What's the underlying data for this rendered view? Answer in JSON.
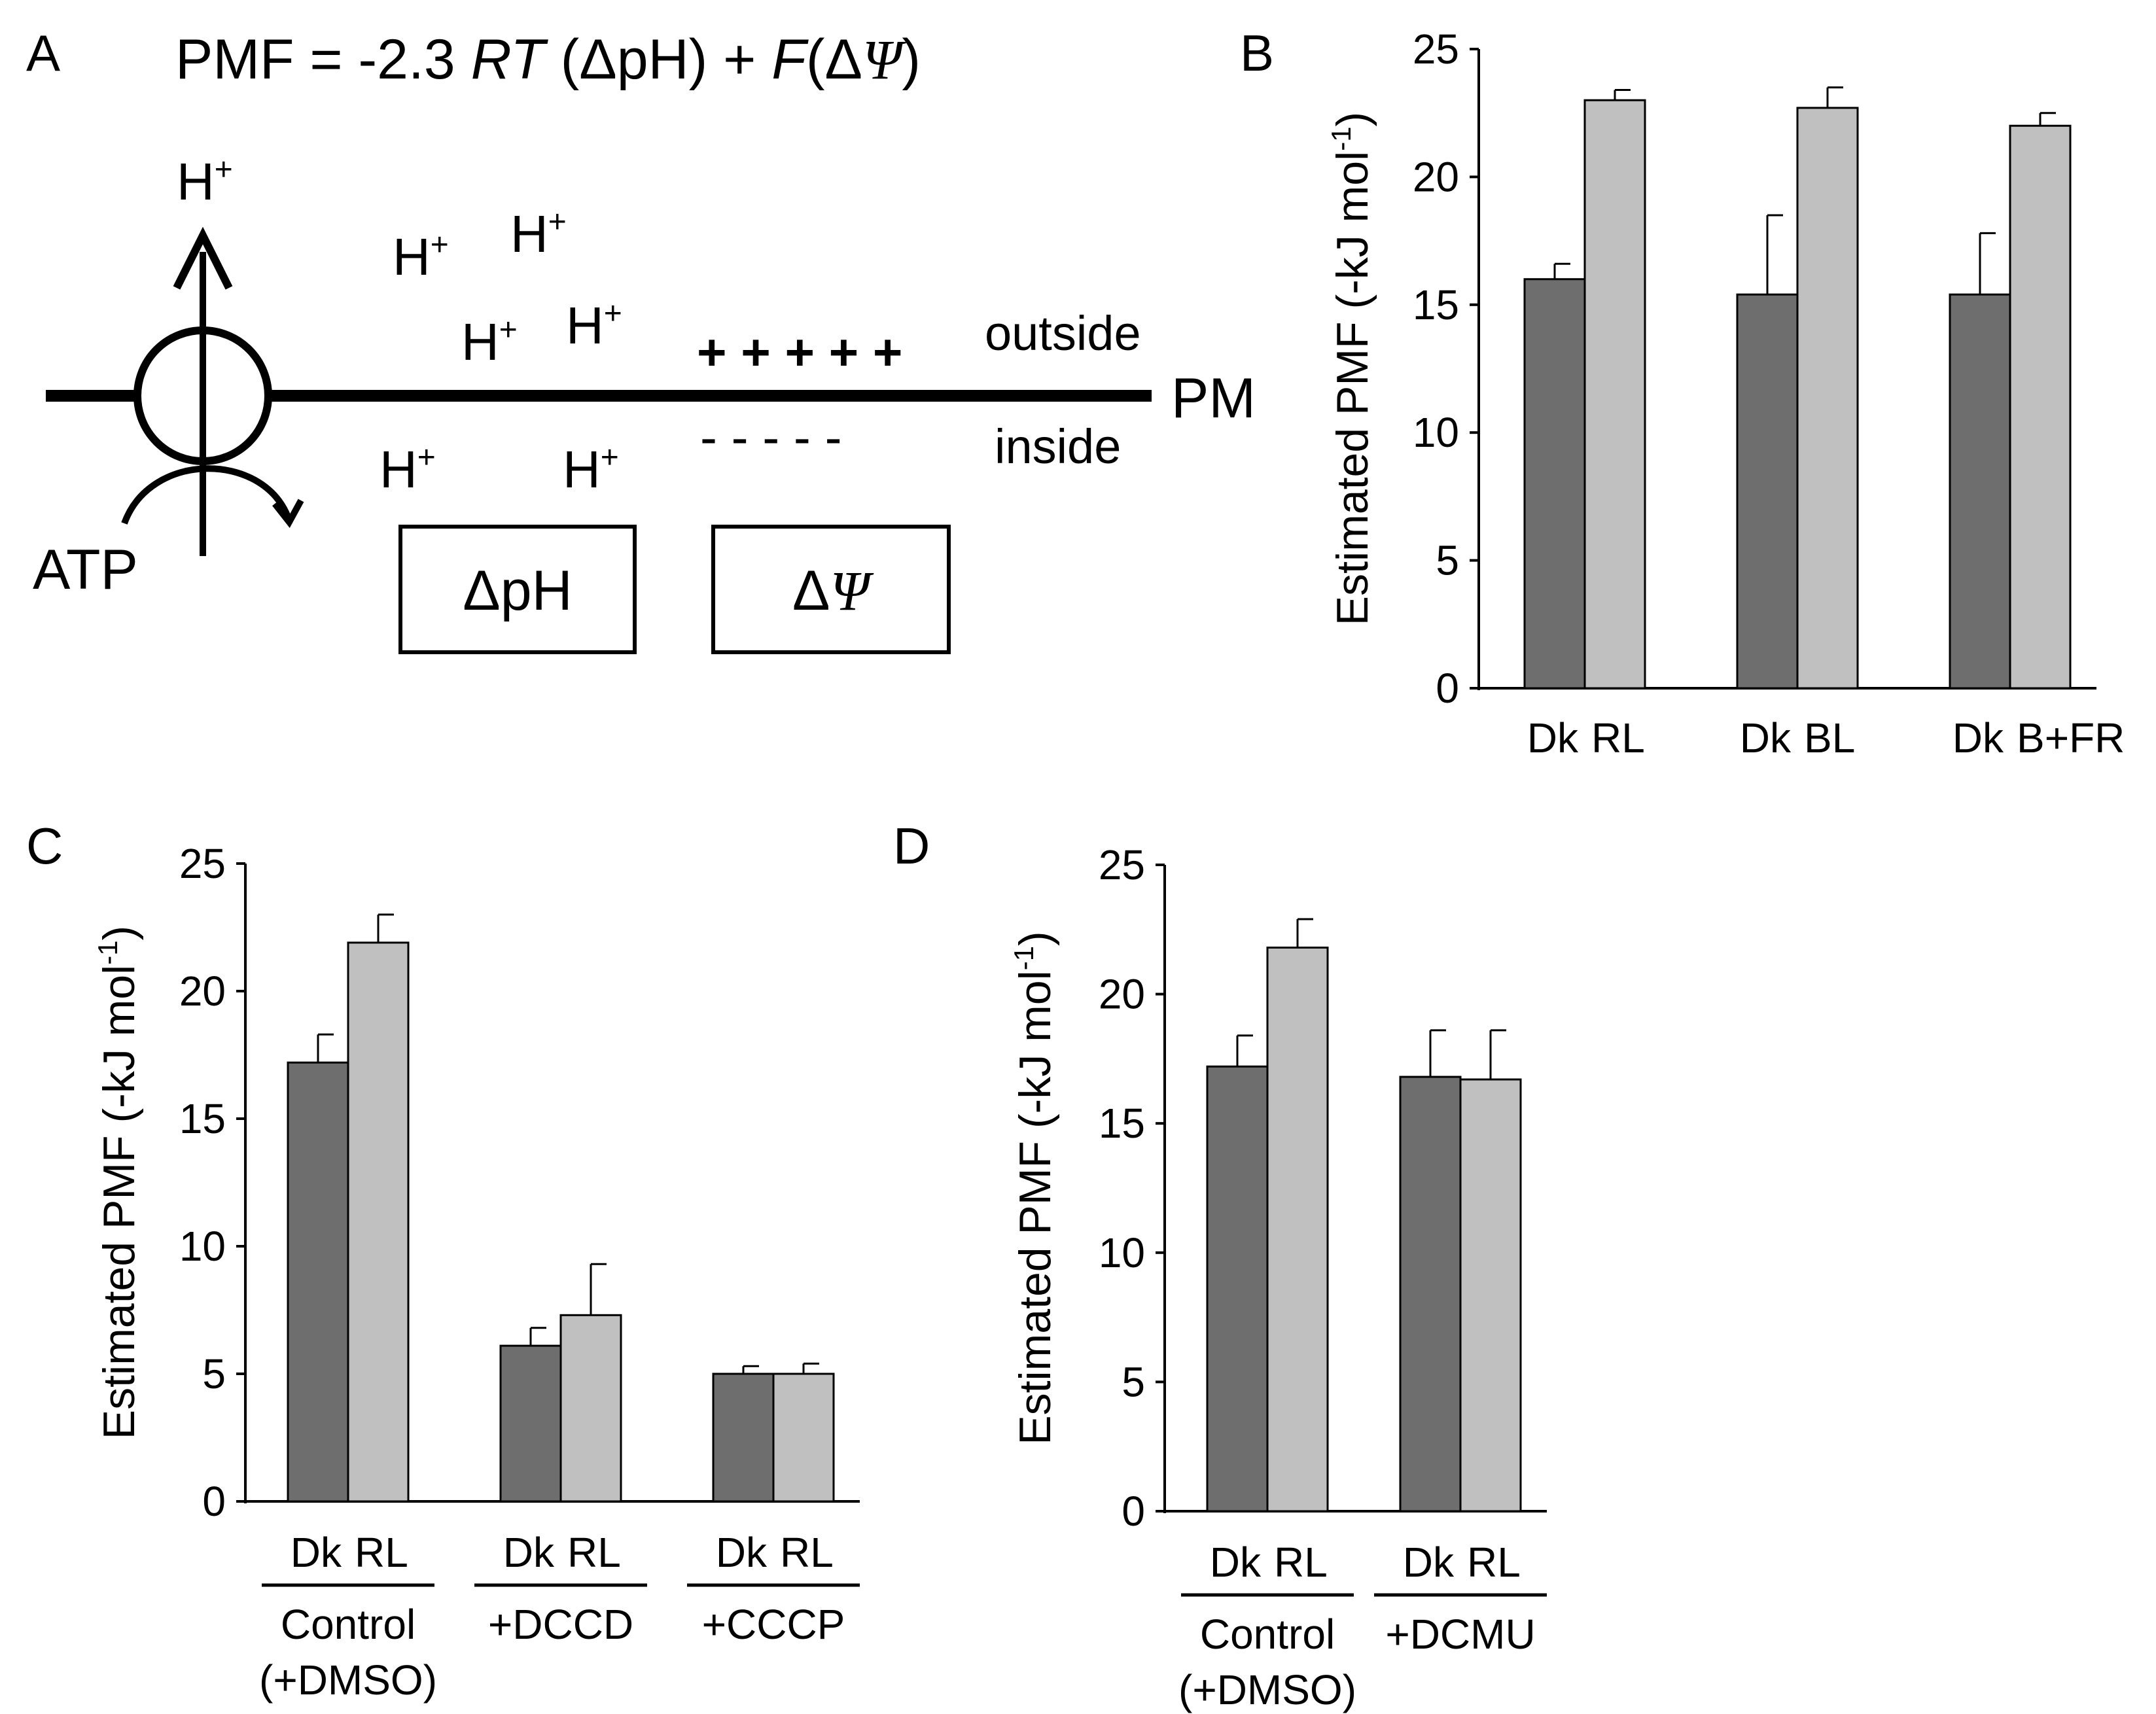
{
  "panel_letters": {
    "a": "A",
    "b": "B",
    "c": "C",
    "d": "D"
  },
  "diagram": {
    "formula_prefix": "PMF =  -2.3 ",
    "formula_rt": "RT",
    "formula_mid": " (ΔpH) + ",
    "formula_f": "F",
    "formula_open": "(Δ",
    "formula_psi": "Ψ",
    "formula_close": ")",
    "proton": "H",
    "proton_charge": "+",
    "plus_signs": "+ + + + +",
    "minus_signs": "-   -   -   -   -",
    "outside_label": "outside",
    "inside_label": "inside",
    "membrane_label": "PM",
    "atp_label": "ATP",
    "box_dph": "ΔpH",
    "box_dpsi_delta": "Δ",
    "box_dpsi_psi": "Ψ"
  },
  "colors": {
    "dark_bar": "#6e6e6e",
    "light_bar": "#c0c0c0",
    "axis": "#000000"
  },
  "chart_data": [
    {
      "id": "B",
      "type": "bar",
      "ylabel": "Estimated PMF (-kJ mol",
      "ylabel_sup": "-1",
      "ylabel_close": ")",
      "ylim": [
        0,
        25
      ],
      "yticks": [
        0,
        5,
        10,
        15,
        20,
        25
      ],
      "groups": [
        {
          "labels": [
            "Dk",
            "RL"
          ],
          "values": [
            16.0,
            23.0
          ],
          "errors": [
            0.6,
            0.4
          ]
        },
        {
          "labels": [
            "Dk",
            "BL"
          ],
          "values": [
            15.4,
            22.7
          ],
          "errors": [
            3.1,
            0.8
          ]
        },
        {
          "labels": [
            "Dk",
            "B+FR"
          ],
          "values": [
            15.4,
            22.0
          ],
          "errors": [
            2.4,
            0.5
          ]
        }
      ]
    },
    {
      "id": "C",
      "type": "bar",
      "ylabel": "Estimated PMF (-kJ mol",
      "ylabel_sup": "-1",
      "ylabel_close": ")",
      "ylim": [
        0,
        25
      ],
      "yticks": [
        0,
        5,
        10,
        15,
        20,
        25
      ],
      "groups": [
        {
          "labels": [
            "Dk",
            "RL"
          ],
          "values": [
            17.2,
            21.9
          ],
          "errors": [
            1.1,
            1.1
          ],
          "treatment": [
            "Control",
            "(+DMSO)"
          ]
        },
        {
          "labels": [
            "Dk",
            "RL"
          ],
          "values": [
            6.1,
            7.3
          ],
          "errors": [
            0.7,
            2.0
          ],
          "treatment": [
            "+DCCD"
          ]
        },
        {
          "labels": [
            "Dk",
            "RL"
          ],
          "values": [
            5.0,
            5.0
          ],
          "errors": [
            0.3,
            0.4
          ],
          "treatment": [
            "+CCCP"
          ]
        }
      ]
    },
    {
      "id": "D",
      "type": "bar",
      "ylabel": "Estimated PMF (-kJ mol",
      "ylabel_sup": "-1",
      "ylabel_close": ")",
      "ylim": [
        0,
        25
      ],
      "yticks": [
        0,
        5,
        10,
        15,
        20,
        25
      ],
      "groups": [
        {
          "labels": [
            "Dk",
            "RL"
          ],
          "values": [
            17.2,
            21.8
          ],
          "errors": [
            1.2,
            1.1
          ],
          "treatment": [
            "Control",
            "(+DMSO)"
          ]
        },
        {
          "labels": [
            "Dk",
            "RL"
          ],
          "values": [
            16.8,
            16.7
          ],
          "errors": [
            1.8,
            1.9
          ],
          "treatment": [
            "+DCMU"
          ]
        }
      ]
    }
  ]
}
